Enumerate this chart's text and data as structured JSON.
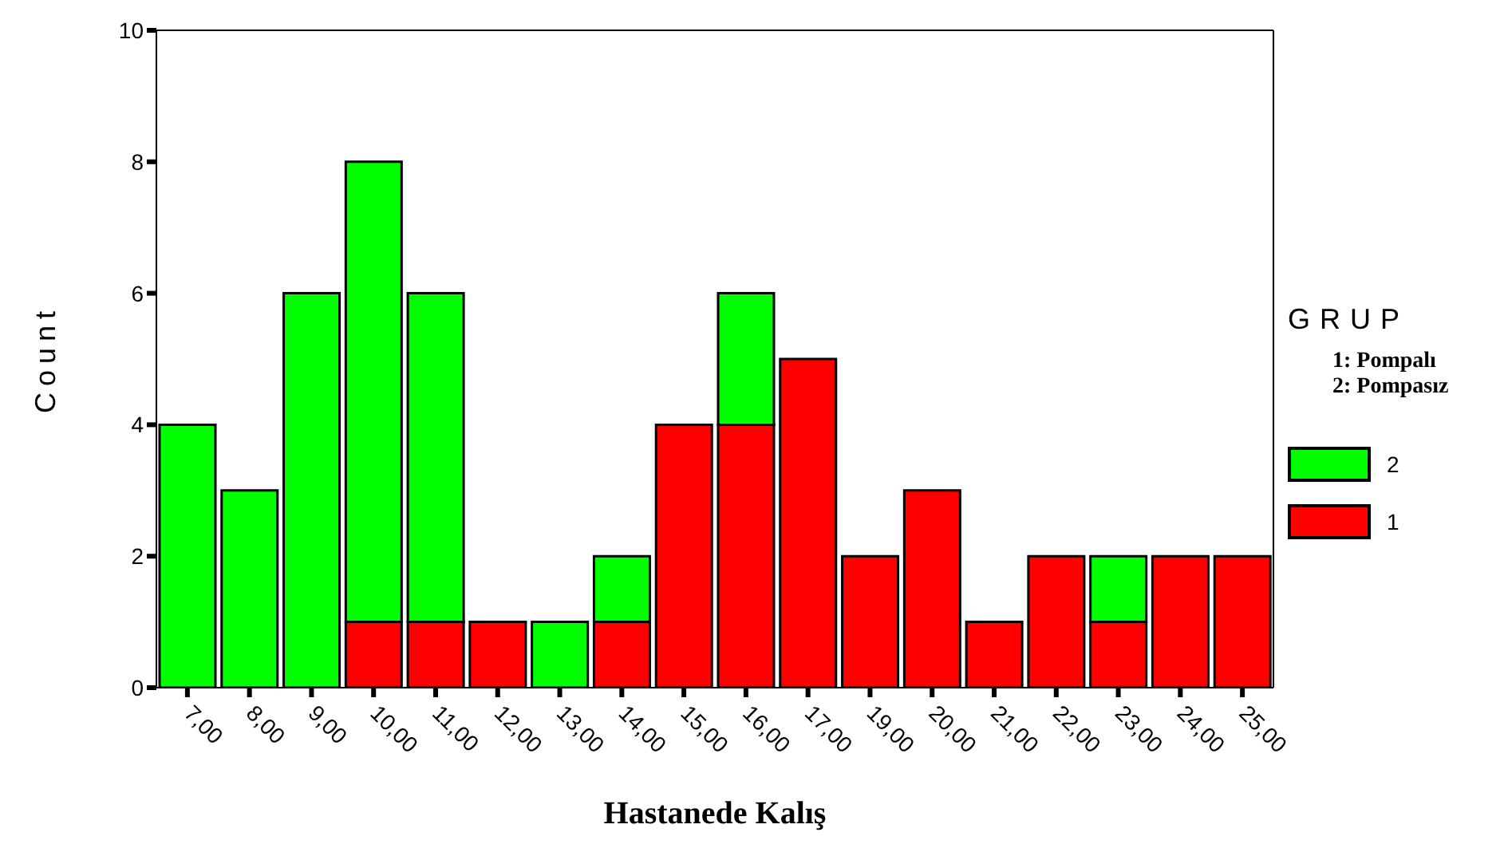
{
  "chart_data": {
    "type": "bar",
    "stacked": true,
    "xlabel": "Hastanede Kalış",
    "ylabel": "Count",
    "legend_title": "GRUP",
    "annotations": [
      "1: Pompalı",
      "2: Pompasız"
    ],
    "categories": [
      "7,00",
      "8,00",
      "9,00",
      "10,00",
      "11,00",
      "12,00",
      "13,00",
      "14,00",
      "15,00",
      "16,00",
      "17,00",
      "19,00",
      "20,00",
      "21,00",
      "22,00",
      "23,00",
      "24,00",
      "25,00"
    ],
    "series": [
      {
        "name": "1",
        "color": "#ff0000",
        "values": [
          0,
          0,
          0,
          1,
          1,
          1,
          0,
          1,
          4,
          4,
          5,
          2,
          3,
          1,
          2,
          1,
          2,
          2
        ]
      },
      {
        "name": "2",
        "color": "#00ff00",
        "values": [
          4,
          3,
          6,
          7,
          5,
          0,
          1,
          1,
          0,
          2,
          0,
          0,
          0,
          0,
          0,
          1,
          0,
          0
        ]
      }
    ],
    "ylim": [
      0,
      10
    ],
    "yticks": [
      0,
      2,
      4,
      6,
      8,
      10
    ],
    "grid": false,
    "legend": "right"
  }
}
